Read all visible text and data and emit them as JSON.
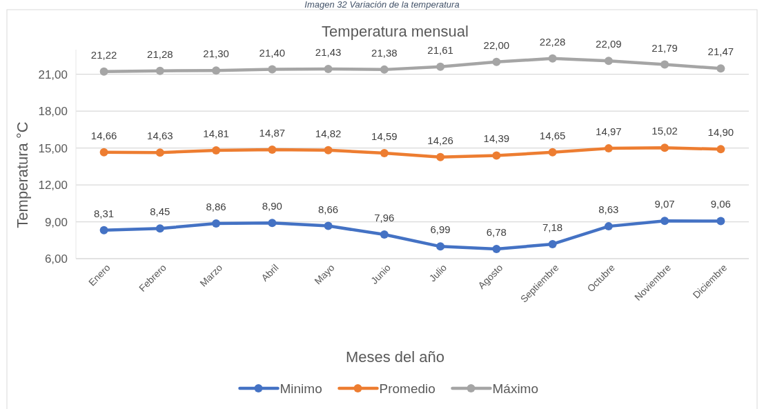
{
  "chart_data": {
    "type": "line",
    "title": "Temperatura mensual",
    "xlabel": "Meses del año",
    "ylabel": "Temperatura °C",
    "annotations": [
      "Imagen 32 Variación de la temperatura"
    ],
    "categories": [
      "Enero",
      "Febrero",
      "Marzo",
      "Abril",
      "Mayo",
      "Junio",
      "Julio",
      "Agosto",
      "Septiembre",
      "Octubre",
      "Noviembre",
      "Diciembre"
    ],
    "series": [
      {
        "name": "Minimo",
        "color": "#4472c4",
        "values": [
          8.31,
          8.45,
          8.86,
          8.9,
          8.66,
          7.96,
          6.99,
          6.78,
          7.18,
          8.63,
          9.07,
          9.06
        ],
        "value_labels": [
          "8,31",
          "8,45",
          "8,86",
          "8,90",
          "8,66",
          "7,96",
          "6,99",
          "6,78",
          "7,18",
          "8,63",
          "9,07",
          "9,06"
        ]
      },
      {
        "name": "Promedio",
        "color": "#ed7d31",
        "values": [
          14.66,
          14.63,
          14.81,
          14.87,
          14.82,
          14.59,
          14.26,
          14.39,
          14.65,
          14.97,
          15.02,
          14.9
        ],
        "value_labels": [
          "14,66",
          "14,63",
          "14,81",
          "14,87",
          "14,82",
          "14,59",
          "14,26",
          "14,39",
          "14,65",
          "14,97",
          "15,02",
          "14,90"
        ]
      },
      {
        "name": "Máximo",
        "color": "#a5a5a5",
        "values": [
          21.22,
          21.28,
          21.3,
          21.4,
          21.43,
          21.38,
          21.61,
          22.0,
          22.28,
          22.09,
          21.79,
          21.47
        ],
        "value_labels": [
          "21,22",
          "21,28",
          "21,30",
          "21,40",
          "21,43",
          "21,38",
          "21,61",
          "22,00",
          "22,28",
          "22,09",
          "21,79",
          "21,47"
        ]
      }
    ],
    "ylim": [
      6,
      23
    ],
    "yticks": [
      {
        "value": 6,
        "label": "6,00"
      },
      {
        "value": 9,
        "label": "9,00"
      },
      {
        "value": 12,
        "label": "12,00"
      },
      {
        "value": 15,
        "label": "15,00"
      },
      {
        "value": 18,
        "label": "18,00"
      },
      {
        "value": 21,
        "label": "21,00"
      }
    ],
    "grid": "y",
    "legend": "bottom",
    "marker": "circle",
    "line_style": "solid"
  }
}
